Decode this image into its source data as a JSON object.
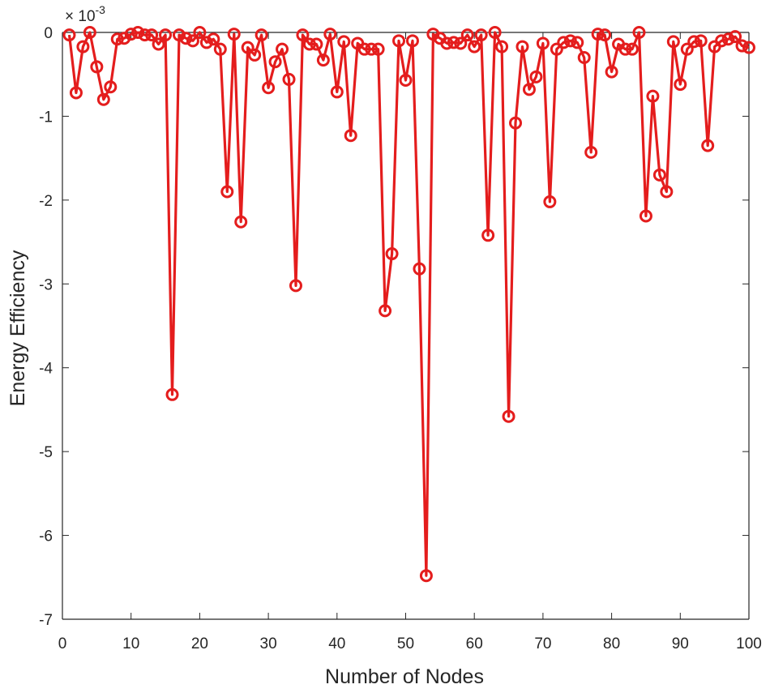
{
  "chart_data": {
    "type": "line",
    "title": "",
    "xlabel": "Number of Nodes",
    "ylabel": "Energy Efficiency",
    "y_exponent_label": "× 10",
    "y_exponent_power": "-3",
    "xlim": [
      0,
      100
    ],
    "ylim": [
      -7,
      0
    ],
    "x_ticks": [
      0,
      10,
      20,
      30,
      40,
      50,
      60,
      70,
      80,
      90,
      100
    ],
    "y_ticks": [
      0,
      -1,
      -2,
      -3,
      -4,
      -5,
      -6,
      -7
    ],
    "x_tick_labels": [
      "0",
      "10",
      "20",
      "30",
      "40",
      "50",
      "60",
      "70",
      "80",
      "90",
      "100"
    ],
    "y_tick_labels": [
      "0",
      "-1",
      "-2",
      "-3",
      "-4",
      "-5",
      "-6",
      "-7"
    ],
    "grid": false,
    "marker": "circle",
    "line_color": "#e41d1d",
    "series": [
      {
        "x": [
          1,
          2,
          3,
          4,
          5,
          6,
          7,
          8,
          9,
          10,
          11,
          12,
          13,
          14,
          15,
          16,
          17,
          18,
          19,
          20,
          21,
          22,
          23,
          24,
          25,
          26,
          27,
          28,
          29,
          30,
          31,
          32,
          33,
          34,
          35,
          36,
          37,
          38,
          39,
          40,
          41,
          42,
          43,
          44,
          45,
          46,
          47,
          48,
          49,
          50,
          51,
          52,
          53,
          54,
          55,
          56,
          57,
          58,
          59,
          60,
          61,
          62,
          63,
          64,
          65,
          66,
          67,
          68,
          69,
          70,
          71,
          72,
          73,
          74,
          75,
          76,
          77,
          78,
          79,
          80,
          81,
          82,
          83,
          84,
          85,
          86,
          87,
          88,
          89,
          90,
          91,
          92,
          93,
          94,
          95,
          96,
          97,
          98,
          99,
          100
        ],
        "values": [
          -0.03,
          -0.72,
          -0.17,
          0,
          -0.41,
          -0.8,
          -0.65,
          -0.08,
          -0.07,
          -0.02,
          0,
          -0.03,
          -0.03,
          -0.14,
          -0.03,
          -4.32,
          -0.03,
          -0.07,
          -0.1,
          0,
          -0.12,
          -0.08,
          -0.2,
          -1.9,
          -0.02,
          -2.26,
          -0.18,
          -0.27,
          -0.03,
          -0.66,
          -0.35,
          -0.2,
          -0.56,
          -3.02,
          -0.03,
          -0.14,
          -0.14,
          -0.33,
          -0.02,
          -0.71,
          -0.11,
          -1.23,
          -0.13,
          -0.2,
          -0.2,
          -0.2,
          -3.32,
          -2.64,
          -0.1,
          -0.57,
          -0.1,
          -2.82,
          -6.48,
          -0.02,
          -0.07,
          -0.13,
          -0.12,
          -0.13,
          -0.03,
          -0.17,
          -0.03,
          -2.42,
          0,
          -0.17,
          -4.58,
          -1.08,
          -0.17,
          -0.68,
          -0.53,
          -0.13,
          -2.02,
          -0.2,
          -0.12,
          -0.1,
          -0.12,
          -0.3,
          -1.43,
          -0.02,
          -0.03,
          -0.47,
          -0.14,
          -0.2,
          -0.2,
          0,
          -2.19,
          -0.76,
          -1.7,
          -1.9,
          -0.11,
          -0.62,
          -0.2,
          -0.11,
          -0.1,
          -1.35,
          -0.17,
          -0.1,
          -0.08,
          -0.05,
          -0.16,
          -0.18
        ]
      }
    ]
  }
}
